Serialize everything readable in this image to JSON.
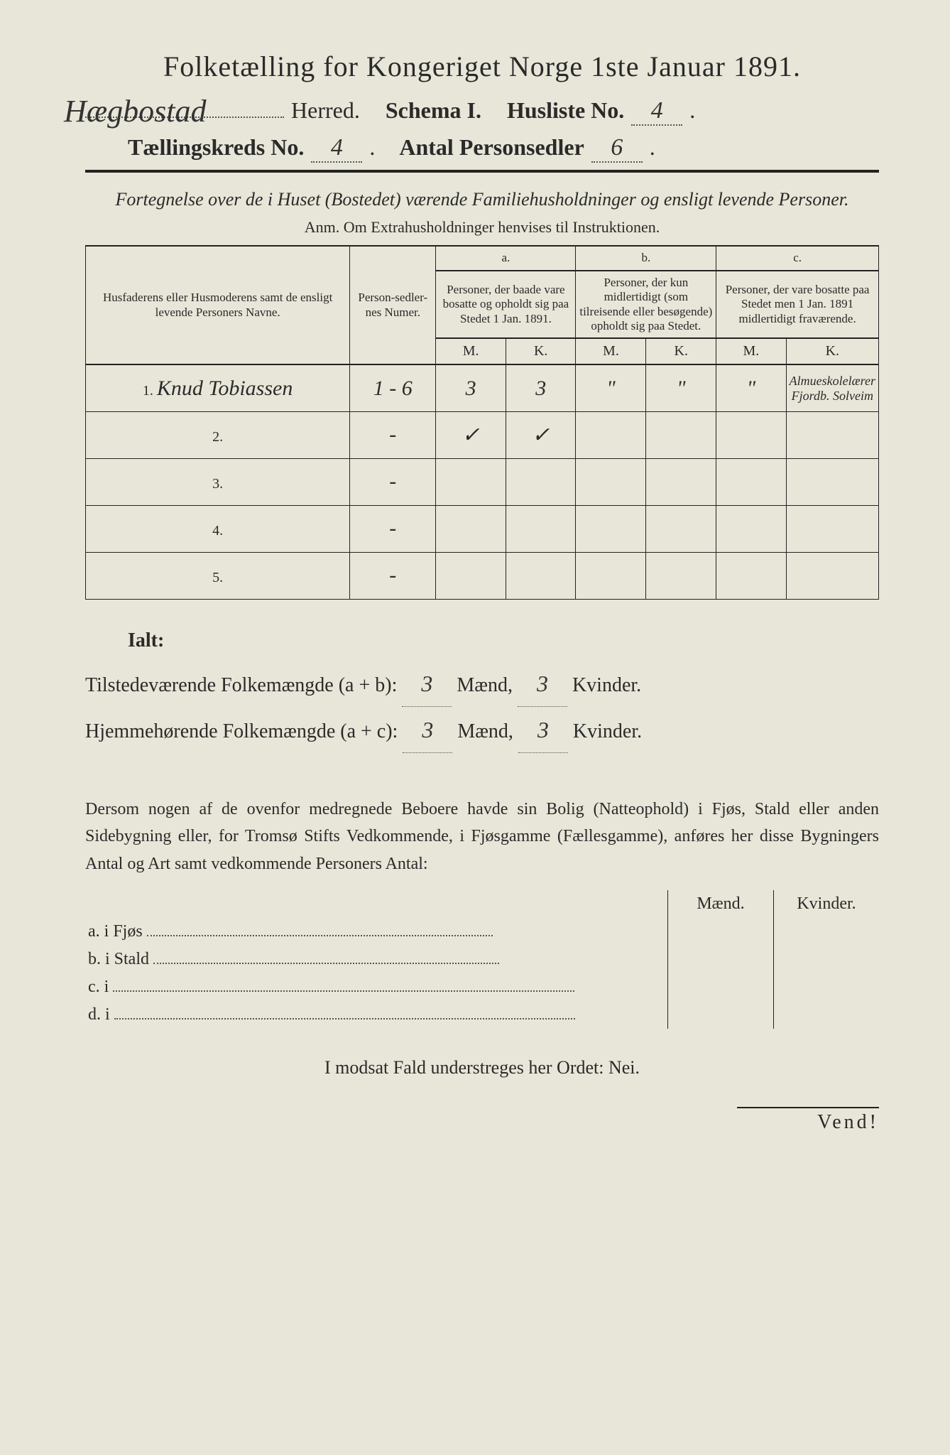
{
  "title": "Folketælling for Kongeriget Norge 1ste Januar 1891.",
  "herred_hw": "Hægbostad",
  "herred_label": "Herred.",
  "schema_label": "Schema I.",
  "husliste_label": "Husliste No.",
  "husliste_no_hw": "4",
  "taellingskreds_label": "Tællingskreds No.",
  "taellingskreds_no_hw": "4",
  "antal_label": "Antal Personsedler",
  "antal_hw": "6",
  "subtitle": "Fortegnelse over de i Huset (Bostedet) værende Familiehusholdninger og ensligt levende Personer.",
  "anm": "Anm.  Om Extrahusholdninger henvises til Instruktionen.",
  "table": {
    "col_name": "Husfaderens eller Husmoderens samt de ensligt levende Personers Navne.",
    "col_num": "Person-sedler-nes Numer.",
    "col_a_top": "a.",
    "col_a": "Personer, der baade vare bosatte og opholdt sig paa Stedet 1 Jan. 1891.",
    "col_b_top": "b.",
    "col_b": "Personer, der kun midlertidigt (som tilreisende eller besøgende) opholdt sig paa Stedet.",
    "col_c_top": "c.",
    "col_c": "Personer, der vare bosatte paa Stedet men 1 Jan. 1891 midlertidigt fraværende.",
    "mk_m": "M.",
    "mk_k": "K.",
    "rows": [
      {
        "idx": "1.",
        "name_hw": "Knud Tobiassen",
        "num_hw": "1 - 6",
        "a_m": "3",
        "a_k": "3",
        "b_m": "\"",
        "b_k": "\"",
        "c_m": "\"",
        "c_k_note": "Almueskolelærer Fjordb. Solveim"
      },
      {
        "idx": "2.",
        "name_hw": "",
        "num_hw": "-",
        "a_m": "✓",
        "a_k": "✓",
        "b_m": "",
        "b_k": "",
        "c_m": "",
        "c_k_note": ""
      },
      {
        "idx": "3.",
        "name_hw": "",
        "num_hw": "-",
        "a_m": "",
        "a_k": "",
        "b_m": "",
        "b_k": "",
        "c_m": "",
        "c_k_note": ""
      },
      {
        "idx": "4.",
        "name_hw": "",
        "num_hw": "-",
        "a_m": "",
        "a_k": "",
        "b_m": "",
        "b_k": "",
        "c_m": "",
        "c_k_note": ""
      },
      {
        "idx": "5.",
        "name_hw": "",
        "num_hw": "-",
        "a_m": "",
        "a_k": "",
        "b_m": "",
        "b_k": "",
        "c_m": "",
        "c_k_note": ""
      }
    ]
  },
  "totals": {
    "ialt": "Ialt:",
    "line1_label": "Tilstedeværende Folkemængde (a + b):",
    "line2_label": "Hjemmehørende Folkemængde (a + c):",
    "maend": "Mænd,",
    "kvinder": "Kvinder.",
    "l1_m": "3",
    "l1_k": "3",
    "l2_m": "3",
    "l2_k": "3"
  },
  "paragraph": "Dersom nogen af de ovenfor medregnede Beboere havde sin Bolig (Natteophold) i Fjøs, Stald eller anden Sidebygning eller, for Tromsø Stifts Vedkommende, i Fjøsgamme (Fællesgamme), anføres her disse Bygningers Antal og Art samt vedkommende Personers Antal:",
  "ab": {
    "maend": "Mænd.",
    "kvinder": "Kvinder.",
    "a_label": "a.  i      Fjøs",
    "b_label": "b.  i      Stald",
    "c_label": "c.  i",
    "d_label": "d.  i"
  },
  "modsat": "I modsat Fald understreges her Ordet: Nei.",
  "vend": "Vend!",
  "colors": {
    "bg": "#e8e6d8",
    "ink": "#2a2a2a"
  }
}
